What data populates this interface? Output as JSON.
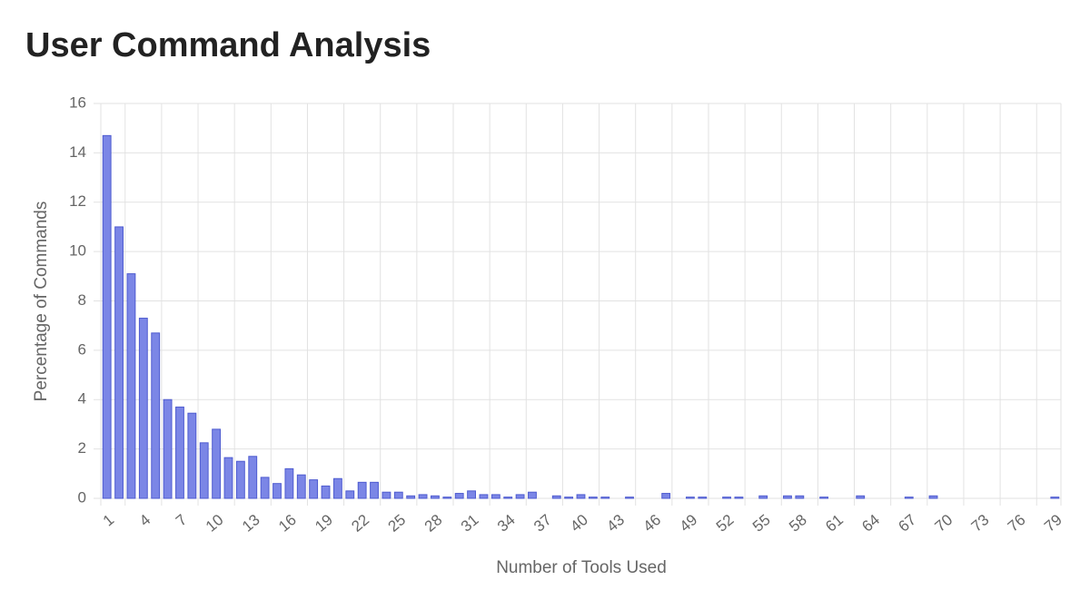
{
  "chart_data": {
    "type": "bar",
    "title": "User Command Analysis",
    "x_label": "Number of Tools Used",
    "y_label": "Percentage of Commands",
    "categories": [
      1,
      null,
      null,
      4,
      null,
      null,
      7,
      null,
      null,
      10,
      null,
      null,
      13,
      null,
      null,
      16,
      null,
      null,
      19,
      null,
      null,
      22,
      null,
      null,
      25,
      null,
      null,
      28,
      null,
      null,
      31,
      null,
      null,
      34,
      null,
      null,
      37,
      null,
      null,
      40,
      null,
      null,
      43,
      null,
      null,
      46,
      null,
      null,
      49,
      null,
      null,
      52,
      null,
      null,
      55,
      null,
      null,
      58,
      null,
      null,
      61,
      null,
      null,
      64,
      null,
      null,
      67,
      null,
      null,
      70,
      null,
      null,
      73,
      null,
      null,
      76,
      null,
      null,
      79
    ],
    "values": [
      14.7,
      11,
      9.1,
      7.3,
      6.7,
      4,
      3.7,
      3.45,
      2.25,
      2.8,
      1.65,
      1.5,
      1.7,
      0.85,
      0.6,
      1.2,
      0.95,
      0.75,
      0.5,
      0.8,
      0.3,
      0.65,
      0.65,
      0.25,
      0.25,
      0.1,
      0.15,
      0.1,
      0.05,
      0.2,
      0.3,
      0.15,
      0.15,
      0.05,
      0.15,
      0.25,
      0,
      0.1,
      0.05,
      0.15,
      0.05,
      0.05,
      0,
      0.05,
      0,
      0,
      0.2,
      0,
      0.05,
      0.05,
      0,
      0.05,
      0.05,
      0,
      0.1,
      0,
      0.1,
      0.1,
      0,
      0.05,
      0,
      0,
      0.1,
      0,
      0,
      0,
      0.05,
      0,
      0.1,
      0,
      0,
      0,
      0,
      0,
      0,
      0,
      0,
      0,
      0.05
    ],
    "color": "#7b86e6",
    "border_color": "#4e5bd0",
    "ylim": [
      0,
      16
    ],
    "yticks": [
      0,
      2,
      4,
      6,
      8,
      10,
      12,
      14,
      16
    ],
    "grid": true
  }
}
